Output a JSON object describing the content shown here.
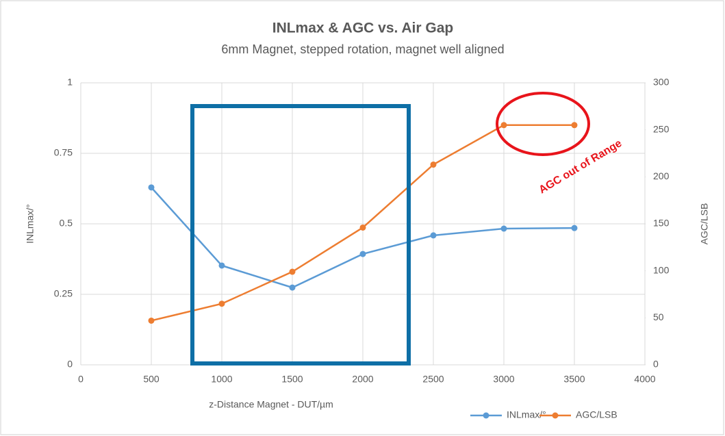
{
  "chart_data": {
    "type": "line",
    "title": "INLmax & AGC vs. Air Gap",
    "subtitle": "6mm Magnet, stepped rotation, magnet well aligned",
    "x_label": "z-Distance Magnet - DUT/µm",
    "y_label": "INLmax/°",
    "y2_label": "AGC/LSB",
    "annotation": "AGC out of Range",
    "x": [
      500,
      1000,
      1500,
      2000,
      2500,
      3000,
      3500
    ],
    "series": [
      {
        "name": "INLmax/°",
        "color": "#5b9bd5",
        "values": [
          0.629,
          0.352,
          0.274,
          0.393,
          0.459,
          0.483,
          0.485
        ]
      },
      {
        "name": "AGC/LSB",
        "color": "#ed7d31",
        "axis": "y2",
        "values": [
          47,
          65,
          99,
          146,
          213,
          255,
          255
        ]
      }
    ],
    "xlim": [
      0,
      4000
    ],
    "xticks": [
      0,
      500,
      1000,
      1500,
      2000,
      2500,
      3000,
      3500,
      4000
    ],
    "ylim": [
      0,
      1
    ],
    "yticks": [
      0,
      0.25,
      0.5,
      0.75,
      1
    ],
    "y2lim": [
      0,
      300
    ],
    "y2ticks": [
      0,
      50,
      100,
      150,
      200,
      250,
      300
    ],
    "grid": true,
    "legend": "bottom"
  }
}
